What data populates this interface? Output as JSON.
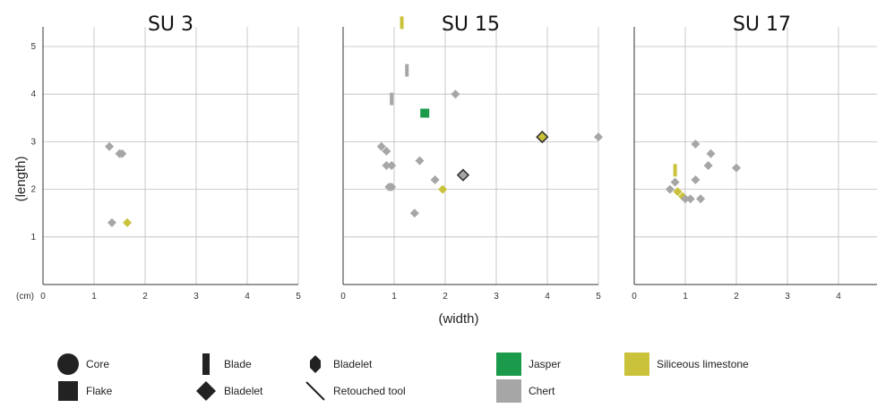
{
  "chart_data": {
    "type": "scatter",
    "xlabel": "(width)",
    "ylabel": "(length)",
    "unit_label": "(cm)",
    "xlim": [
      0,
      5
    ],
    "ylim": [
      0,
      5
    ],
    "x_ticks": [
      "0",
      "1",
      "2",
      "3",
      "4",
      "5"
    ],
    "y_ticks": [
      "0",
      "1",
      "2",
      "3",
      "4",
      "5"
    ],
    "colors": {
      "jasper": "#1a9a4a",
      "chert": "#a6a6a6",
      "limestone": "#c9c23a",
      "outline": "#333333"
    },
    "panels": [
      {
        "title": "SU 3",
        "points": [
          {
            "x": 1.3,
            "y": 2.9,
            "shape": "flake",
            "material": "chert"
          },
          {
            "x": 1.5,
            "y": 2.75,
            "shape": "flake",
            "material": "chert"
          },
          {
            "x": 1.55,
            "y": 2.75,
            "shape": "flake",
            "material": "chert"
          },
          {
            "x": 1.35,
            "y": 1.3,
            "shape": "flake",
            "material": "chert"
          },
          {
            "x": 1.65,
            "y": 1.3,
            "shape": "flake",
            "material": "limestone"
          }
        ]
      },
      {
        "title": "SU 15",
        "points": [
          {
            "x": 1.15,
            "y": 5.5,
            "shape": "blade",
            "material": "limestone"
          },
          {
            "x": 1.25,
            "y": 4.5,
            "shape": "blade",
            "material": "chert"
          },
          {
            "x": 0.95,
            "y": 3.9,
            "shape": "blade",
            "material": "chert"
          },
          {
            "x": 2.2,
            "y": 4.0,
            "shape": "flake",
            "material": "chert"
          },
          {
            "x": 1.6,
            "y": 3.6,
            "shape": "flake",
            "material": "jasper"
          },
          {
            "x": 3.9,
            "y": 3.1,
            "shape": "bladelet",
            "material": "limestone"
          },
          {
            "x": 5.0,
            "y": 3.1,
            "shape": "flake",
            "material": "chert"
          },
          {
            "x": 0.75,
            "y": 2.9,
            "shape": "flake",
            "material": "chert"
          },
          {
            "x": 0.85,
            "y": 2.8,
            "shape": "flake",
            "material": "chert"
          },
          {
            "x": 1.5,
            "y": 2.6,
            "shape": "flake",
            "material": "chert"
          },
          {
            "x": 0.85,
            "y": 2.5,
            "shape": "flake",
            "material": "chert"
          },
          {
            "x": 0.95,
            "y": 2.5,
            "shape": "flake",
            "material": "chert"
          },
          {
            "x": 2.35,
            "y": 2.3,
            "shape": "bladelet",
            "material": "chert"
          },
          {
            "x": 1.8,
            "y": 2.2,
            "shape": "flake",
            "material": "chert"
          },
          {
            "x": 0.9,
            "y": 2.05,
            "shape": "flake",
            "material": "chert"
          },
          {
            "x": 0.95,
            "y": 2.05,
            "shape": "flake",
            "material": "chert"
          },
          {
            "x": 1.95,
            "y": 2.0,
            "shape": "flake",
            "material": "limestone"
          },
          {
            "x": 1.4,
            "y": 1.5,
            "shape": "flake",
            "material": "chert"
          }
        ]
      },
      {
        "title": "SU 17",
        "points": [
          {
            "x": 0.8,
            "y": 2.4,
            "shape": "blade",
            "material": "limestone"
          },
          {
            "x": 1.2,
            "y": 2.95,
            "shape": "flake",
            "material": "chert"
          },
          {
            "x": 1.5,
            "y": 2.75,
            "shape": "flake",
            "material": "chert"
          },
          {
            "x": 1.45,
            "y": 2.5,
            "shape": "flake",
            "material": "chert"
          },
          {
            "x": 2.0,
            "y": 2.45,
            "shape": "flake",
            "material": "chert"
          },
          {
            "x": 1.2,
            "y": 2.2,
            "shape": "flake",
            "material": "chert"
          },
          {
            "x": 0.8,
            "y": 2.15,
            "shape": "flake",
            "material": "chert"
          },
          {
            "x": 0.7,
            "y": 2.0,
            "shape": "flake",
            "material": "chert"
          },
          {
            "x": 0.85,
            "y": 1.95,
            "shape": "flake",
            "material": "limestone"
          },
          {
            "x": 0.95,
            "y": 1.85,
            "shape": "flake",
            "material": "limestone"
          },
          {
            "x": 1.0,
            "y": 1.8,
            "shape": "flake",
            "material": "chert"
          },
          {
            "x": 1.1,
            "y": 1.8,
            "shape": "flake",
            "material": "chert"
          },
          {
            "x": 1.3,
            "y": 1.8,
            "shape": "flake",
            "material": "chert"
          }
        ]
      }
    ],
    "legend": {
      "shapes": [
        {
          "key": "core",
          "label": "Core"
        },
        {
          "key": "flake",
          "label": "Flake"
        },
        {
          "key": "blade",
          "label": "Blade"
        },
        {
          "key": "bladelet",
          "label": "Bladelet"
        },
        {
          "key": "bladelet-diamond",
          "label": "Bladelet"
        },
        {
          "key": "retouched",
          "label": "Retouched tool"
        }
      ],
      "materials": [
        {
          "key": "jasper",
          "label": "Jasper"
        },
        {
          "key": "chert",
          "label": "Chert"
        },
        {
          "key": "limestone",
          "label": "Siliceous limestone"
        }
      ]
    }
  }
}
